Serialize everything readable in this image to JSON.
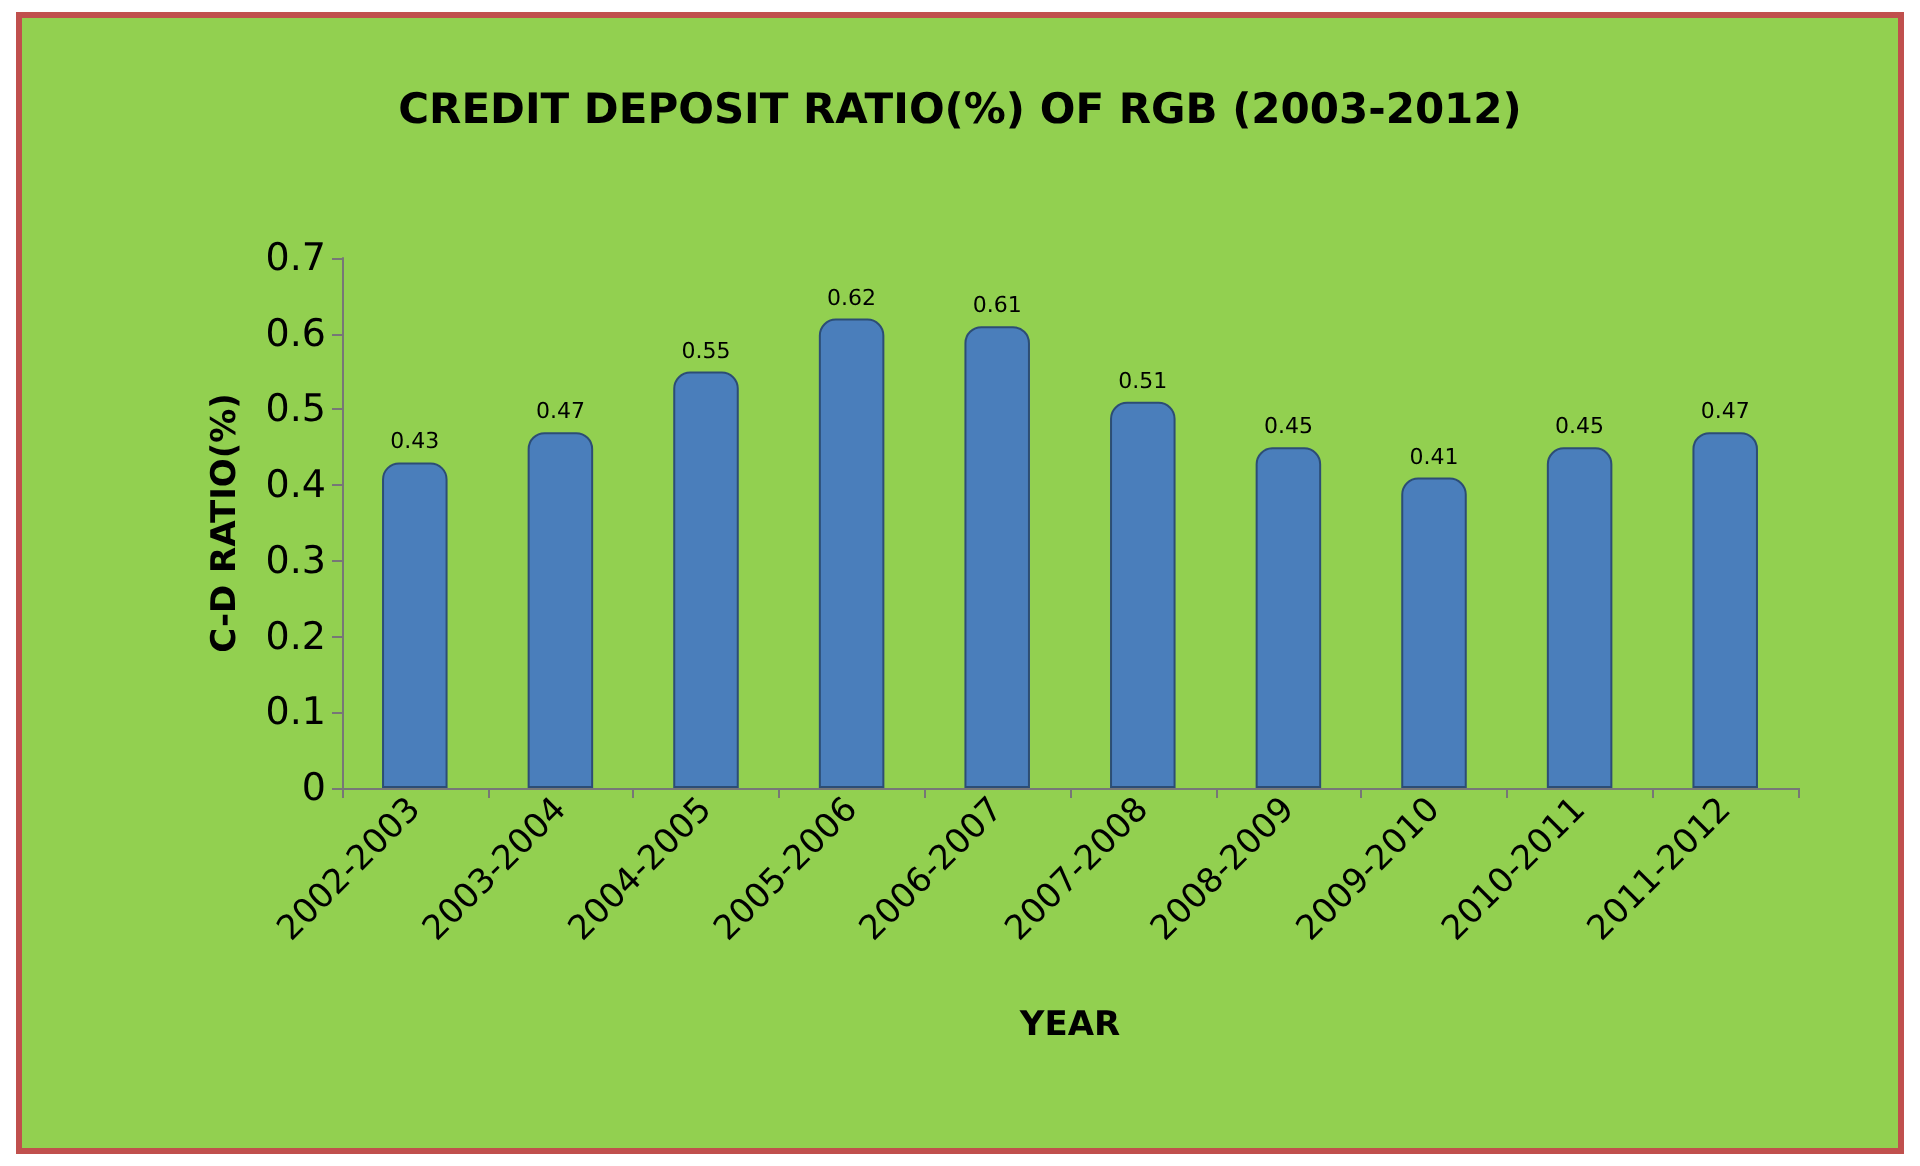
{
  "chart_data": {
    "type": "bar",
    "title": "CREDIT DEPOSIT RATIO(%) OF RGB (2003-2012)",
    "xlabel": "YEAR",
    "ylabel": "C-D RATIO(%)",
    "categories": [
      "2002-2003",
      "2003-2004",
      "2004-2005",
      "2005-2006",
      "2006-2007",
      "2007-2008",
      "2008-2009",
      "2009-2010",
      "2010-2011",
      "2011-2012"
    ],
    "values": [
      0.43,
      0.47,
      0.55,
      0.62,
      0.61,
      0.51,
      0.45,
      0.41,
      0.45,
      0.47
    ],
    "color": "#4a7ebb",
    "ylim": [
      0,
      0.7
    ],
    "yticks": [
      0,
      0.1,
      0.2,
      0.3,
      0.4,
      0.5,
      0.6,
      0.7
    ],
    "grid": false,
    "data_labels": true
  }
}
